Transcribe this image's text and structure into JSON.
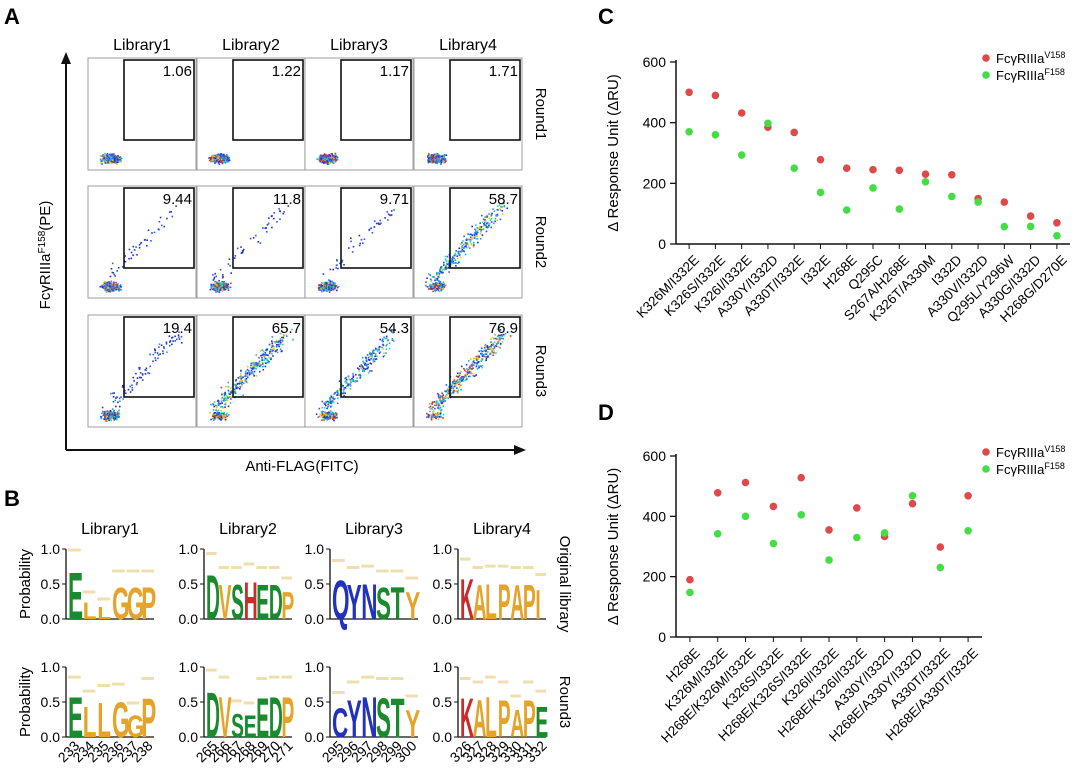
{
  "panels": {
    "A": {
      "letter": "A",
      "libraries": [
        "Library1",
        "Library2",
        "Library3",
        "Library4"
      ],
      "rounds": [
        "Round1",
        "Round2",
        "Round3"
      ],
      "gate_percent": [
        [
          "1.06",
          "1.22",
          "1.17",
          "1.71"
        ],
        [
          "9.44",
          "11.8",
          "9.71",
          "58.7"
        ],
        [
          "19.4",
          "65.7",
          "54.3",
          "76.9"
        ]
      ],
      "ylabel_main": "FcγRIIIa",
      "ylabel_sup": "F158",
      "ylabel_tail": "(PE)",
      "xlabel": "Anti-FLAG(FITC)"
    },
    "B": {
      "letter": "B",
      "libraries": [
        "Library1",
        "Library2",
        "Library3",
        "Library4"
      ],
      "row_labels": [
        "Original library",
        "Round3"
      ],
      "ylabel": "Probability",
      "yticks": [
        "1.0",
        "0.5",
        "0.0"
      ],
      "logos": [
        {
          "positions": [
            "233",
            "234",
            "235",
            "236",
            "237",
            "238"
          ],
          "original": [
            {
              "l": "E",
              "c": "#1a8a2e",
              "h": 0.95
            },
            {
              "l": "L",
              "c": "#e6a32a",
              "h": 0.35
            },
            {
              "l": "L",
              "c": "#e6a32a",
              "h": 0.25
            },
            {
              "l": "G",
              "c": "#e6a32a",
              "h": 0.65
            },
            {
              "l": "G",
              "c": "#e6a32a",
              "h": 0.65
            },
            {
              "l": "P",
              "c": "#e6a32a",
              "h": 0.65
            }
          ],
          "round3": [
            {
              "l": "E",
              "c": "#1a8a2e",
              "h": 0.82
            },
            {
              "l": "L",
              "c": "#e6a32a",
              "h": 0.62
            },
            {
              "l": "L",
              "c": "#e6a32a",
              "h": 0.7
            },
            {
              "l": "G",
              "c": "#e6a32a",
              "h": 0.72
            },
            {
              "l": "G",
              "c": "#e6a32a",
              "h": 0.45
            },
            {
              "l": "P",
              "c": "#e6a32a",
              "h": 0.8
            }
          ]
        },
        {
          "positions": [
            "265",
            "266",
            "267",
            "268",
            "269",
            "270",
            "271"
          ],
          "original": [
            {
              "l": "D",
              "c": "#1a8a2e",
              "h": 0.9
            },
            {
              "l": "V",
              "c": "#e6a32a",
              "h": 0.7
            },
            {
              "l": "S",
              "c": "#1a8a2e",
              "h": 0.7
            },
            {
              "l": "H",
              "c": "#cc2a2a",
              "h": 0.75
            },
            {
              "l": "E",
              "c": "#1a8a2e",
              "h": 0.7
            },
            {
              "l": "D",
              "c": "#1a8a2e",
              "h": 0.7
            },
            {
              "l": "P",
              "c": "#e6a32a",
              "h": 0.55
            }
          ],
          "round3": [
            {
              "l": "D",
              "c": "#1a8a2e",
              "h": 0.92
            },
            {
              "l": "V",
              "c": "#e6a32a",
              "h": 0.82
            },
            {
              "l": "S",
              "c": "#1a8a2e",
              "h": 0.48
            },
            {
              "l": "E",
              "c": "#1a8a2e",
              "h": 0.45
            },
            {
              "l": "E",
              "c": "#1a8a2e",
              "h": 0.8
            },
            {
              "l": "D",
              "c": "#1a8a2e",
              "h": 0.82
            },
            {
              "l": "P",
              "c": "#e6a32a",
              "h": 0.82
            }
          ]
        },
        {
          "positions": [
            "295",
            "296",
            "297",
            "298",
            "299",
            "300"
          ],
          "original": [
            {
              "l": "Q",
              "c": "#2233bb",
              "h": 0.8
            },
            {
              "l": "Y",
              "c": "#2233bb",
              "h": 0.7
            },
            {
              "l": "N",
              "c": "#2233bb",
              "h": 0.72
            },
            {
              "l": "S",
              "c": "#1a8a2e",
              "h": 0.65
            },
            {
              "l": "T",
              "c": "#1a8a2e",
              "h": 0.65
            },
            {
              "l": "Y",
              "c": "#e6a32a",
              "h": 0.55
            }
          ],
          "round3": [
            {
              "l": "C",
              "c": "#2233bb",
              "h": 0.6
            },
            {
              "l": "Y",
              "c": "#2233bb",
              "h": 0.75
            },
            {
              "l": "N",
              "c": "#2233bb",
              "h": 0.82
            },
            {
              "l": "S",
              "c": "#1a8a2e",
              "h": 0.8
            },
            {
              "l": "T",
              "c": "#1a8a2e",
              "h": 0.8
            },
            {
              "l": "Y",
              "c": "#e6a32a",
              "h": 0.55
            }
          ]
        },
        {
          "positions": [
            "326",
            "327",
            "328",
            "329",
            "330",
            "331",
            "332"
          ],
          "original": [
            {
              "l": "K",
              "c": "#cc2a2a",
              "h": 0.82
            },
            {
              "l": "A",
              "c": "#e6a32a",
              "h": 0.7
            },
            {
              "l": "L",
              "c": "#e6a32a",
              "h": 0.72
            },
            {
              "l": "P",
              "c": "#e6a32a",
              "h": 0.72
            },
            {
              "l": "A",
              "c": "#e6a32a",
              "h": 0.7
            },
            {
              "l": "P",
              "c": "#e6a32a",
              "h": 0.7
            },
            {
              "l": "I",
              "c": "#e6a32a",
              "h": 0.6
            }
          ],
          "round3": [
            {
              "l": "K",
              "c": "#cc2a2a",
              "h": 0.8
            },
            {
              "l": "A",
              "c": "#e6a32a",
              "h": 0.75
            },
            {
              "l": "L",
              "c": "#e6a32a",
              "h": 0.82
            },
            {
              "l": "P",
              "c": "#e6a32a",
              "h": 0.75
            },
            {
              "l": "A",
              "c": "#e6a32a",
              "h": 0.55
            },
            {
              "l": "P",
              "c": "#e6a32a",
              "h": 0.75
            },
            {
              "l": "E",
              "c": "#1a8a2e",
              "h": 0.62
            }
          ]
        }
      ]
    },
    "legend": {
      "label": "FcγRIIIa",
      "series": [
        {
          "sup": "V158",
          "color": "#de4a4a"
        },
        {
          "sup": "F158",
          "color": "#44dd44"
        }
      ]
    }
  },
  "chart_data": [
    {
      "panel": "C",
      "type": "scatter",
      "ylabel": "Δ Response Unit (ΔRU)",
      "ylim": [
        0,
        600
      ],
      "yticks": [
        0,
        200,
        400,
        600
      ],
      "categories": [
        "K326M/I332E",
        "K326S/I332E",
        "K326I/I332E",
        "A330Y/I332D",
        "A330T/I332E",
        "I332E",
        "H268E",
        "Q295C",
        "S267A/H268E",
        "K326T/A330M",
        "I332D",
        "A330V/I332D",
        "Q295L/Y296W",
        "A330G/I332D",
        "H268G/D270E"
      ],
      "series": [
        {
          "name": "FcγRIIIa V158",
          "color": "#de4a4a",
          "values": [
            500,
            490,
            432,
            385,
            368,
            278,
            250,
            245,
            243,
            230,
            228,
            150,
            138,
            92,
            70
          ]
        },
        {
          "name": "FcγRIIIa F158",
          "color": "#44dd44",
          "values": [
            370,
            360,
            293,
            398,
            250,
            170,
            112,
            185,
            115,
            205,
            157,
            138,
            57,
            58,
            27
          ]
        }
      ]
    },
    {
      "panel": "D",
      "type": "scatter",
      "ylabel": "Δ Response Unit (ΔRU)",
      "ylim": [
        0,
        600
      ],
      "yticks": [
        0,
        200,
        400,
        600
      ],
      "categories": [
        "H268E",
        "K326M/I332E",
        "H268E/K326M/I332E",
        "K326S/I332E",
        "H268E/K326S/I332E",
        "K326I/I332E",
        "H268E/K326I/I332E",
        "A330Y/I332D",
        "H268E/A330Y/I332D",
        "A330T/I332E",
        "H268E/A330T/I332E"
      ],
      "series": [
        {
          "name": "FcγRIIIa V158",
          "color": "#de4a4a",
          "values": [
            190,
            478,
            512,
            433,
            528,
            355,
            428,
            333,
            442,
            298,
            468
          ]
        },
        {
          "name": "FcγRIIIa F158",
          "color": "#44dd44",
          "values": [
            148,
            342,
            400,
            310,
            405,
            255,
            330,
            345,
            468,
            230,
            352
          ]
        }
      ]
    }
  ]
}
